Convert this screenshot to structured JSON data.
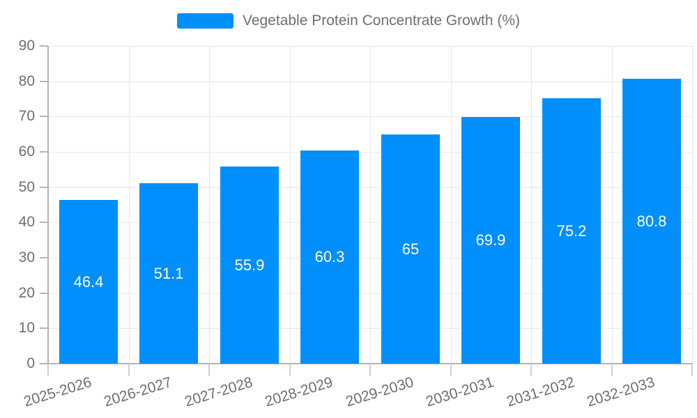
{
  "legend": {
    "label": "Vegetable Protein Concentrate Growth (%)"
  },
  "colors": {
    "bar": "#008FFB",
    "grid": "#e7e7e7",
    "axis": "#b3b3b3",
    "y_tick": "#b3b3b3",
    "x_tick": "#cfcfcf",
    "label_text": "#6e6e6e",
    "value_text": "#ffffff",
    "background": "#ffffff"
  },
  "chart_data": {
    "type": "bar",
    "title": "",
    "legend_entries": [
      "Vegetable Protein Concentrate Growth (%)"
    ],
    "legend_position": "top",
    "categories": [
      "2025-2026",
      "2026-2027",
      "2027-2028",
      "2028-2029",
      "2029-2030",
      "2030-2031",
      "2031-2032",
      "2032-2033"
    ],
    "series": [
      {
        "name": "Vegetable Protein Concentrate Growth (%)",
        "values": [
          46.4,
          51.1,
          55.9,
          60.3,
          65,
          69.9,
          75.2,
          80.8
        ]
      }
    ],
    "value_labels": [
      "46.4",
      "51.1",
      "55.9",
      "60.3",
      "65",
      "69.9",
      "75.2",
      "80.8"
    ],
    "xlabel": "",
    "ylabel": "",
    "ylim": [
      0,
      90
    ],
    "yticks": [
      0,
      10,
      20,
      30,
      40,
      50,
      60,
      70,
      80,
      90
    ],
    "grid": true,
    "x_label_rotation_deg": -17
  }
}
